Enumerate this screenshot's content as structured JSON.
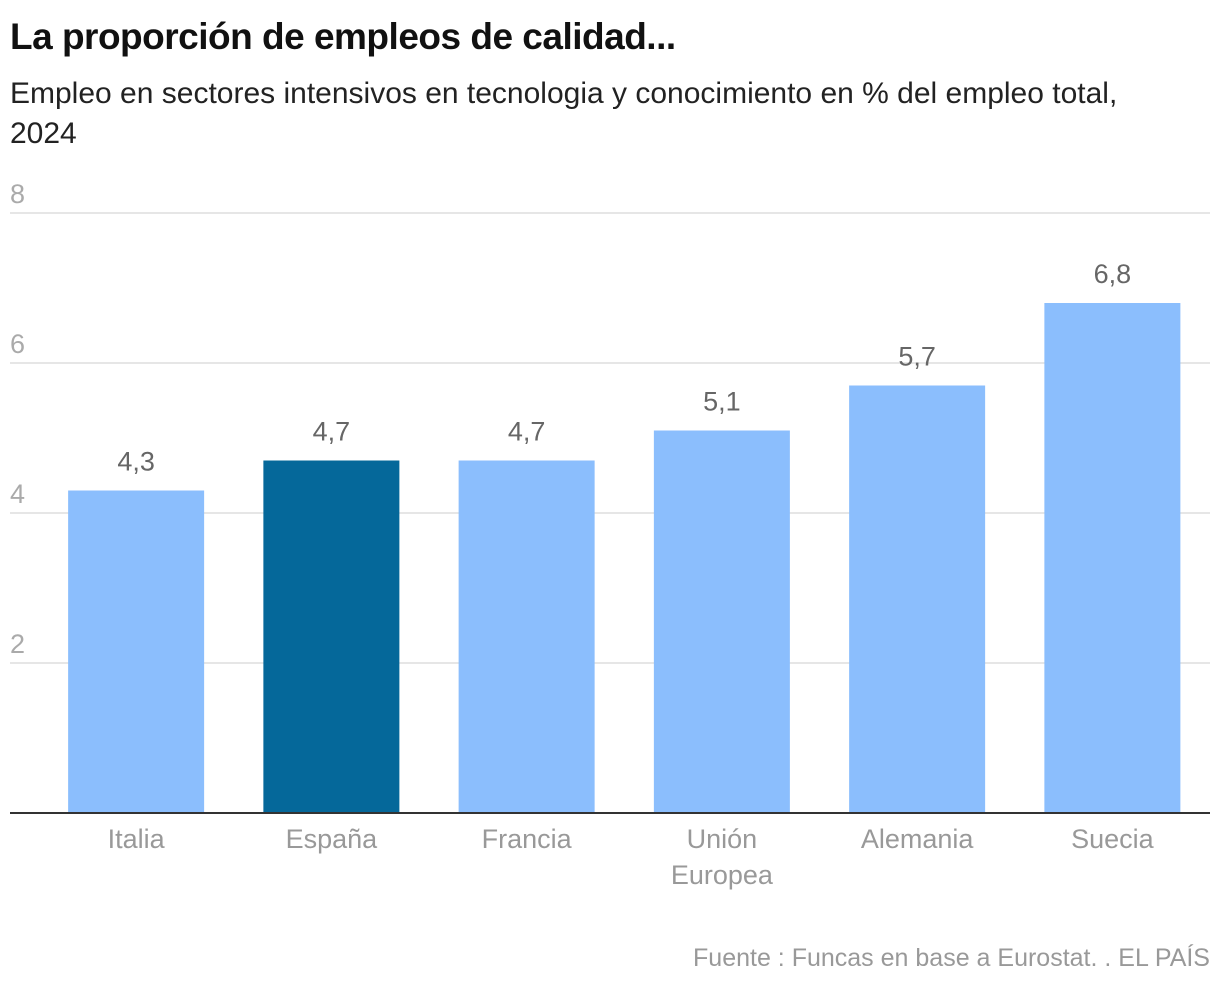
{
  "chart_data": {
    "type": "bar",
    "title": "La proporción de empleos de calidad...",
    "subtitle": "Empleo en sectores intensivos en tecnologia y conocimiento en % del empleo total, 2024",
    "source": "Fuente : Funcas en base a Eurostat. . EL PAÍS",
    "categories": [
      "Italia",
      "España",
      "Francia",
      "Unión Europea",
      "Alemania",
      "Suecia"
    ],
    "values": [
      4.3,
      4.7,
      4.7,
      5.1,
      5.7,
      6.8
    ],
    "value_labels": [
      "4,3",
      "4,7",
      "4,7",
      "5,1",
      "5,7",
      "6,8"
    ],
    "colors": [
      "#8bbefd",
      "#05689a",
      "#8bbefd",
      "#8bbefd",
      "#8bbefd",
      "#8bbefd"
    ],
    "ylim": [
      0,
      8
    ],
    "yticks": [
      2,
      4,
      6,
      8
    ],
    "grid": true
  }
}
